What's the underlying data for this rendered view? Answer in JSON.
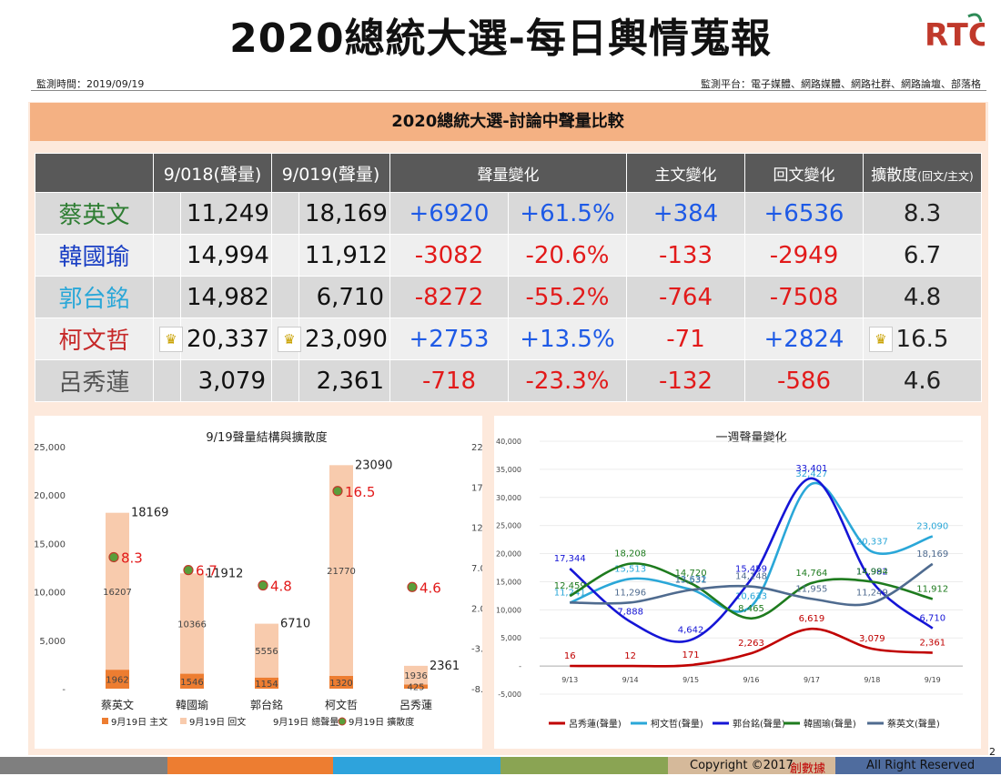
{
  "header": {
    "title": "2020總統大選-每日輿情蒐報",
    "logo_text": "RTC",
    "monitor_time": "監測時間：2019/09/19",
    "monitor_platform": "監測平台：電子媒體、網路媒體、網路社群、網路論壇、部落格"
  },
  "section_title": "2020總統大選-討論中聲量比較",
  "table": {
    "headers": [
      "",
      "9/018(聲量)",
      "9/019(聲量)",
      "聲量變化",
      "主文變化",
      "回文變化",
      "擴散度"
    ],
    "diffusion_suffix": "(回文/主文)",
    "rows": [
      {
        "name": "蔡英文",
        "color": "#2e7d32",
        "prev": "11,249",
        "curr": "18,169",
        "diff": "+6920",
        "pct": "+61.5%",
        "main": "+384",
        "reply": "+6536",
        "spread": "8.3",
        "crown": [
          false,
          false,
          false
        ]
      },
      {
        "name": "韓國瑜",
        "color": "#1a3fc4",
        "prev": "14,994",
        "curr": "11,912",
        "diff": "-3082",
        "pct": "-20.6%",
        "main": "-133",
        "reply": "-2949",
        "spread": "6.7",
        "crown": [
          false,
          false,
          false
        ]
      },
      {
        "name": "郭台銘",
        "color": "#2aa7d8",
        "prev": "14,982",
        "curr": "6,710",
        "diff": "-8272",
        "pct": "-55.2%",
        "main": "-764",
        "reply": "-7508",
        "spread": "4.8",
        "crown": [
          false,
          false,
          false
        ]
      },
      {
        "name": "柯文哲",
        "color": "#c62828",
        "prev": "20,337",
        "curr": "23,090",
        "diff": "+2753",
        "pct": "+13.5%",
        "main": "-71",
        "reply": "+2824",
        "spread": "16.5",
        "crown": [
          true,
          true,
          true
        ]
      },
      {
        "name": "呂秀蓮",
        "color": "#555555",
        "prev": "3,079",
        "curr": "2,361",
        "diff": "-718",
        "pct": "-23.3%",
        "main": "-132",
        "reply": "-586",
        "spread": "4.6",
        "crown": [
          false,
          false,
          false
        ]
      }
    ]
  },
  "chart_data": [
    {
      "type": "bar",
      "title": "9/19聲量結構與擴散度",
      "stacked": true,
      "categories": [
        "蔡英文",
        "韓國瑜",
        "郭台銘",
        "柯文哲",
        "呂秀蓮"
      ],
      "series": [
        {
          "name": "9月19日 主文",
          "values": [
            1962,
            1546,
            1154,
            1320,
            425
          ],
          "color": "#ed7d31"
        },
        {
          "name": "9月19日 回文",
          "values": [
            16207,
            10366,
            5556,
            21770,
            1936
          ],
          "color": "#f8cbad"
        },
        {
          "name": "9月19日 總聲量",
          "values": [
            18169,
            11912,
            6710,
            23090,
            2361
          ],
          "color": "none"
        },
        {
          "name": "9月19日 擴散度",
          "values": [
            8.3,
            6.7,
            4.8,
            16.5,
            4.6
          ],
          "color": "#5a9e3a",
          "axis": "right",
          "kind": "scatter"
        }
      ],
      "left_axis": {
        "min": 0,
        "max": 25000,
        "ticks": [
          "-",
          "5,000",
          "10,000",
          "15,000",
          "20,000",
          "25,000"
        ]
      },
      "right_axis": {
        "min": -8,
        "max": 22,
        "ticks": [
          "-8.0",
          "-3.0",
          "2.0",
          "7.0",
          "12.0",
          "17.0",
          "22.0"
        ]
      },
      "legend_position": "bottom"
    },
    {
      "type": "line",
      "title": "一週聲量變化",
      "x": [
        "9/13",
        "9/14",
        "9/15",
        "9/16",
        "9/17",
        "9/18",
        "9/19"
      ],
      "series": [
        {
          "name": "呂秀蓮(聲量)",
          "color": "#c00000",
          "values": [
            16,
            12,
            171,
            2263,
            6619,
            3079,
            2361
          ],
          "labels": [
            "16",
            "12",
            "171",
            "2,263",
            "6,619",
            "3,079",
            "2,361"
          ]
        },
        {
          "name": "柯文哲(聲量)",
          "color": "#2aa7d8",
          "values": [
            11241,
            15513,
            13632,
            10633,
            32427,
            20337,
            23090
          ],
          "labels": [
            "11,241",
            "15,513",
            "13,632",
            "10,633",
            "32,427",
            "20,337",
            "23,090"
          ]
        },
        {
          "name": "郭台銘(聲量)",
          "color": "#1515d6",
          "values": [
            17344,
            7888,
            4642,
            15459,
            33401,
            14982,
            6710
          ],
          "labels": [
            "17,344",
            "7,888",
            "4,642",
            "15,459",
            "33,401",
            "14,982",
            "6,710"
          ]
        },
        {
          "name": "韓國瑜(聲量)",
          "color": "#1e7b1e",
          "values": [
            12459,
            18208,
            14720,
            8465,
            14764,
            14994,
            11912
          ],
          "labels": [
            "12,459",
            "18,208",
            "14,720",
            "8,465",
            "14,764",
            "14,994",
            "11,912"
          ]
        },
        {
          "name": "蔡英文(聲量)",
          "color": "#4f6b8f",
          "values": [
            11296,
            11296,
            13531,
            14148,
            11955,
            11249,
            18169
          ],
          "labels": [
            "",
            "11,296",
            "13,531",
            "14,148",
            "11,955",
            "11,249",
            "18,169"
          ]
        }
      ],
      "y_axis": {
        "min": -5000,
        "max": 40000,
        "ticks": [
          "-5,000",
          "-",
          "5,000",
          "10,000",
          "15,000",
          "20,000",
          "25,000",
          "30,000",
          "35,000",
          "40,000"
        ]
      },
      "legend_position": "bottom"
    }
  ],
  "footer": {
    "copyright": "Copyright ©2017",
    "brand": "創數據",
    "rights": "All Right Reserved",
    "page": "2"
  }
}
